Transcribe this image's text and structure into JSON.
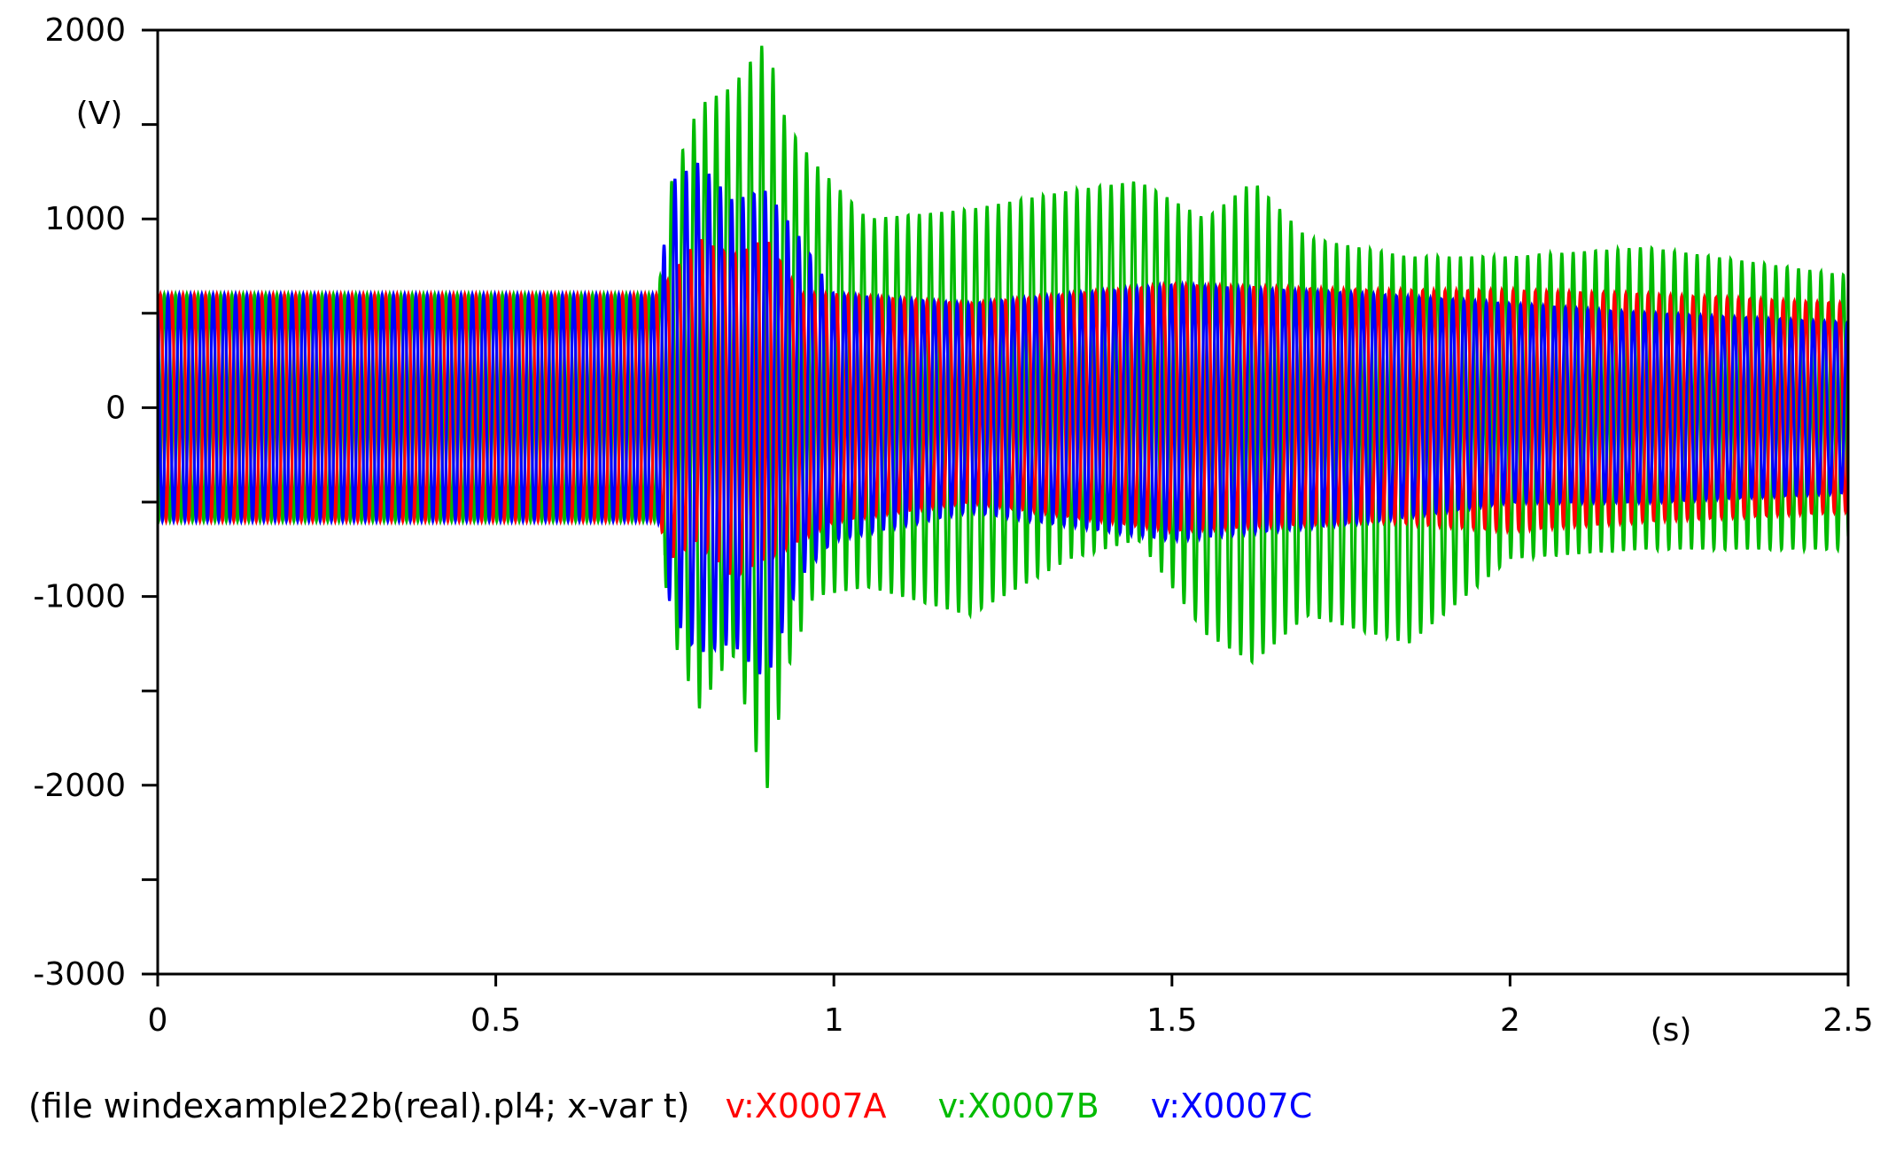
{
  "colors": {
    "background": "#ffffff",
    "axis": "#000000",
    "phase_a": "#ff0000",
    "phase_b": "#00bb00",
    "phase_c": "#0000ff"
  },
  "footer": {
    "file_info": "(file windexample22b(real).pl4; x-var t)",
    "legend": [
      "v:X0007A",
      "v:X0007B",
      "v:X0007C"
    ]
  },
  "chart_data": {
    "type": "line",
    "title": "",
    "xlabel": "(s)",
    "ylabel": "(V)",
    "xlim": [
      0,
      2.5
    ],
    "ylim": [
      -3000,
      2000
    ],
    "x_ticks": [
      0,
      0.5,
      1,
      1.5,
      2,
      2.5
    ],
    "x_tick_labels": [
      "0",
      "0.5",
      "1",
      "1.5",
      "2",
      "2.5"
    ],
    "y_ticks": [
      2000,
      1500,
      1000,
      500,
      0,
      -500,
      -1000,
      -1500,
      -2000,
      -2500,
      -3000
    ],
    "y_tick_labels": [
      "2000",
      "",
      "1000",
      "",
      "0",
      "",
      "-1000",
      "",
      "-2000",
      "",
      "-3000"
    ],
    "grid": false,
    "legend_position": "bottom",
    "series": [
      {
        "name": "v:X0007A",
        "color": "#ff0000",
        "envelope": {
          "t": [
            0,
            0.74,
            0.76,
            0.8,
            0.85,
            0.9,
            0.95,
            1.0,
            1.2,
            1.5,
            1.8,
            2.0,
            2.2,
            2.5
          ],
          "max": [
            600,
            600,
            700,
            900,
            800,
            900,
            600,
            600,
            550,
            650,
            620,
            620,
            600,
            550
          ],
          "min": [
            -600,
            -600,
            -800,
            -700,
            -900,
            -800,
            -700,
            -600,
            -500,
            -650,
            -600,
            -650,
            -600,
            -550
          ]
        }
      },
      {
        "name": "v:X0007B",
        "color": "#00bb00",
        "envelope": {
          "t": [
            0,
            0.74,
            0.76,
            0.8,
            0.85,
            0.9,
            0.93,
            0.97,
            1.05,
            1.2,
            1.35,
            1.45,
            1.55,
            1.62,
            1.7,
            1.85,
            2.0,
            2.2,
            2.5
          ],
          "max": [
            600,
            600,
            1200,
            1600,
            1700,
            1950,
            1500,
            1300,
            1000,
            1050,
            1150,
            1200,
            1000,
            1200,
            900,
            800,
            800,
            850,
            700
          ],
          "min": [
            -600,
            -600,
            -1200,
            -1600,
            -1300,
            -2050,
            -1400,
            -1000,
            -950,
            -1100,
            -800,
            -700,
            -1200,
            -1350,
            -1100,
            -1250,
            -800,
            -750,
            -750
          ]
        }
      },
      {
        "name": "v:X0007C",
        "color": "#0000ff",
        "envelope": {
          "t": [
            0,
            0.74,
            0.76,
            0.8,
            0.85,
            0.9,
            0.95,
            1.0,
            1.2,
            1.5,
            1.8,
            2.0,
            2.2,
            2.5
          ],
          "max": [
            600,
            600,
            1200,
            1300,
            1100,
            1150,
            900,
            600,
            550,
            650,
            600,
            550,
            500,
            450
          ],
          "min": [
            -600,
            -600,
            -1100,
            -1300,
            -1250,
            -1450,
            -900,
            -700,
            -550,
            -700,
            -600,
            -500,
            -500,
            -450
          ]
        }
      }
    ]
  }
}
